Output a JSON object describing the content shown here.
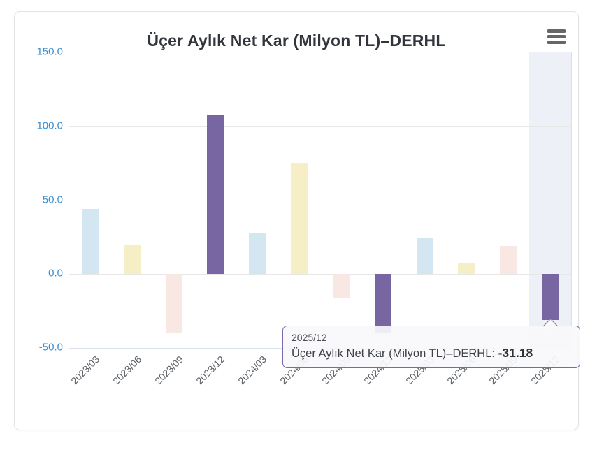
{
  "header": {
    "title": "Üçer Aylık Net Kar (Milyon TL)–DERHL",
    "menu_icon": "hamburger-icon"
  },
  "chart_data": {
    "type": "bar",
    "title": "Üçer Aylık Net Kar (Milyon TL)–DERHL",
    "xlabel": "",
    "ylabel": "",
    "categories": [
      "2023/03",
      "2023/06",
      "2023/09",
      "2023/12",
      "2024/03",
      "2024/06",
      "2024/09",
      "2024/12",
      "2025/03",
      "2025/06",
      "2025/09",
      "2025/12"
    ],
    "values": [
      44,
      20,
      -40,
      108,
      28,
      75,
      -16,
      -40,
      24,
      7.5,
      19,
      -31.18
    ],
    "bar_colors": [
      "#d5e6f3",
      "#f6efc5",
      "#f9e7e4",
      "#7866a3",
      "#d5e6f3",
      "#f6efc5",
      "#f9e7e4",
      "#7866a3",
      "#d5e6f3",
      "#f6efc5",
      "#f9e7e4",
      "#7866a3"
    ],
    "ylim": [
      -50,
      150
    ],
    "ytick_values": [
      150,
      100,
      50,
      0,
      -50
    ],
    "ytick_labels": [
      "150.0",
      "100.0",
      "50.0",
      "0.0",
      "-50.0"
    ],
    "grid": true,
    "legend": "none",
    "highlighted_index": 11,
    "highlight_band_color": "#edf1f7",
    "axis_label_color": "#3b8ece",
    "category_label_color": "#5b6066"
  },
  "tooltip": {
    "category": "2025/12",
    "series_label": "Üçer Aylık Net Kar (Milyon TL)–DERHL:",
    "value": "-31.18",
    "border_color": "#7b68a8"
  }
}
